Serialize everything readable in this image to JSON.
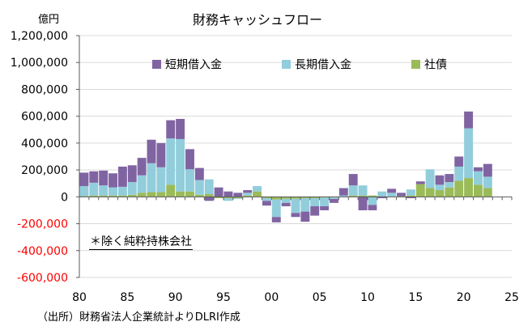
{
  "chart_data": {
    "type": "bar",
    "stacked": true,
    "title": "財務キャッシュフロー",
    "unit_label": "億円",
    "x_ticks": [
      "80",
      "85",
      "90",
      "95",
      "00",
      "05",
      "10",
      "15",
      "20",
      "25"
    ],
    "x_tick_years": [
      1980,
      1985,
      1990,
      1995,
      2000,
      2005,
      2010,
      2015,
      2020,
      2025
    ],
    "y_ticks": [
      "1,200,000",
      "1,000,000",
      "800,000",
      "600,000",
      "400,000",
      "200,000",
      "0",
      "-200,000",
      "-400,000",
      "-600,000"
    ],
    "y_tick_values": [
      1200000,
      1000000,
      800000,
      600000,
      400000,
      200000,
      0,
      -200000,
      -400000,
      -600000
    ],
    "ylim": [
      -600000,
      1200000
    ],
    "xlim": [
      1980,
      2025
    ],
    "legend_position": "top",
    "note": "＊除く純粋持株会社",
    "source": "（出所）財務省法人企業統計よりDLRI作成",
    "years": [
      1980,
      1981,
      1982,
      1983,
      1984,
      1985,
      1986,
      1987,
      1988,
      1989,
      1990,
      1991,
      1992,
      1993,
      1994,
      1995,
      1996,
      1997,
      1998,
      1999,
      2000,
      2001,
      2002,
      2003,
      2004,
      2005,
      2006,
      2007,
      2008,
      2009,
      2010,
      2011,
      2012,
      2013,
      2014,
      2015,
      2016,
      2017,
      2018,
      2019,
      2020,
      2021,
      2022
    ],
    "series": [
      {
        "name": "社債",
        "color": "#9bbb59",
        "values": [
          5000,
          10000,
          10000,
          10000,
          10000,
          15000,
          30000,
          35000,
          35000,
          90000,
          40000,
          40000,
          15000,
          20000,
          -10000,
          -10000,
          -10000,
          10000,
          40000,
          -10000,
          -20000,
          -15000,
          -15000,
          -10000,
          -10000,
          -5000,
          -5000,
          0,
          10000,
          10000,
          10000,
          0,
          0,
          5000,
          10000,
          95000,
          65000,
          50000,
          70000,
          120000,
          140000,
          90000,
          65000
        ]
      },
      {
        "name": "長期借入金",
        "color": "#92cddc",
        "values": [
          75000,
          95000,
          75000,
          60000,
          65000,
          95000,
          130000,
          215000,
          185000,
          345000,
          390000,
          165000,
          110000,
          110000,
          0,
          -20000,
          -5000,
          20000,
          40000,
          -20000,
          -130000,
          -30000,
          -105000,
          -100000,
          -60000,
          -65000,
          -10000,
          10000,
          75000,
          75000,
          -60000,
          40000,
          30000,
          0,
          45000,
          0,
          140000,
          40000,
          40000,
          105000,
          370000,
          100000,
          85000
        ]
      },
      {
        "name": "短期借入金",
        "color": "#8064a2",
        "values": [
          100000,
          85000,
          110000,
          105000,
          150000,
          125000,
          130000,
          175000,
          180000,
          135000,
          150000,
          150000,
          90000,
          -30000,
          70000,
          40000,
          30000,
          20000,
          0,
          -35000,
          -40000,
          -25000,
          -30000,
          -75000,
          -70000,
          -30000,
          -30000,
          55000,
          85000,
          -100000,
          -40000,
          -10000,
          30000,
          25000,
          -10000,
          20000,
          0,
          70000,
          60000,
          75000,
          125000,
          30000,
          95000
        ]
      }
    ]
  }
}
